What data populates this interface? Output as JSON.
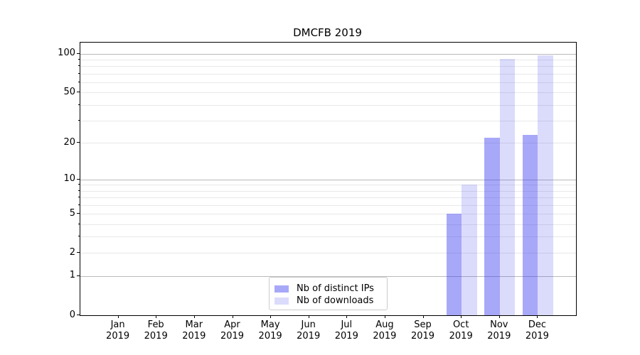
{
  "chart_data": {
    "type": "bar",
    "title": "DMCFB 2019",
    "categories": [
      "Jan",
      "Feb",
      "Mar",
      "Apr",
      "May",
      "Jun",
      "Jul",
      "Aug",
      "Sep",
      "Oct",
      "Nov",
      "Dec"
    ],
    "category_year": "2019",
    "series": [
      {
        "name": "Nb of distinct IPs",
        "fill": "rgba(62,62,240,0.45)",
        "swatch_hex": "#a9a9f6",
        "values": [
          0,
          0,
          0,
          0,
          0,
          0,
          0,
          0,
          0,
          5,
          22,
          23
        ]
      },
      {
        "name": "Nb of downloads",
        "fill": "rgba(62,62,240,0.19)",
        "swatch_hex": "#dadaf9",
        "values": [
          0,
          0,
          0,
          0,
          0,
          0,
          0,
          0,
          0,
          9,
          91,
          97
        ]
      }
    ],
    "xlabel": "",
    "ylabel": "",
    "yscale": "log1p",
    "ylim": [
      0,
      122
    ],
    "yticks_labeled": [
      0,
      1,
      2,
      5,
      10,
      20,
      50,
      100
    ],
    "ygrid_major": [
      1,
      10,
      100
    ],
    "ygrid_minor": [
      2,
      3,
      4,
      5,
      6,
      7,
      8,
      9,
      20,
      30,
      40,
      50,
      60,
      70,
      80,
      90
    ],
    "yticks_minor_marks": [
      3,
      4,
      6,
      7,
      8,
      9,
      30,
      40,
      60,
      70,
      80,
      90
    ],
    "grid": true,
    "legend_position": "lower center",
    "colors": {
      "bar_dark": "#a9a9f6",
      "bar_light": "#dadaf9",
      "grid_major": "#b9b9b9",
      "grid_minor": "#e8e8e8",
      "legend_border": "#cccccc",
      "axis": "#000000"
    }
  }
}
